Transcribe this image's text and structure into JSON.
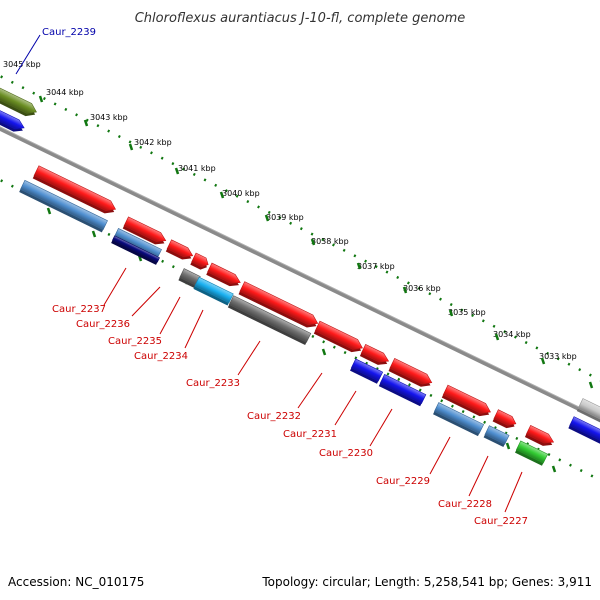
{
  "title": "Chloroflexus aurantiacus J-10-fl, complete genome",
  "footer": {
    "accession": "Accession: NC_010175",
    "topology": "Topology: circular; Length: 5,258,541 bp; Genes: 3,911"
  },
  "kbp_labels": [
    "3045 kbp",
    "3044 kbp",
    "3043 kbp",
    "3042 kbp",
    "3041 kbp",
    "3040 kbp",
    "3039 kbp",
    "3038 kbp",
    "3037 kbp",
    "3036 kbp",
    "3035 kbp",
    "3034 kbp",
    "3033 kbp"
  ],
  "gene_labels": [
    "Caur_2239",
    "Caur_2237",
    "Caur_2236",
    "Caur_2235",
    "Caur_2234",
    "Caur_2233",
    "Caur_2232",
    "Caur_2231",
    "Caur_2230",
    "Caur_2229",
    "Caur_2228",
    "Caur_2227"
  ],
  "colors": {
    "red": "#ff1a1a",
    "steel_blue": "#4f8fd0",
    "navy": "#0a0a80",
    "gray": "#707070",
    "cyan": "#1ab0f0",
    "blue": "#1515ee",
    "green": "#33cc33",
    "olive": "#6b8e23",
    "light_gray": "#c8c8c8",
    "tick_green": "#117711",
    "label_red": "#cc0000",
    "label_blue": "#0000aa"
  }
}
